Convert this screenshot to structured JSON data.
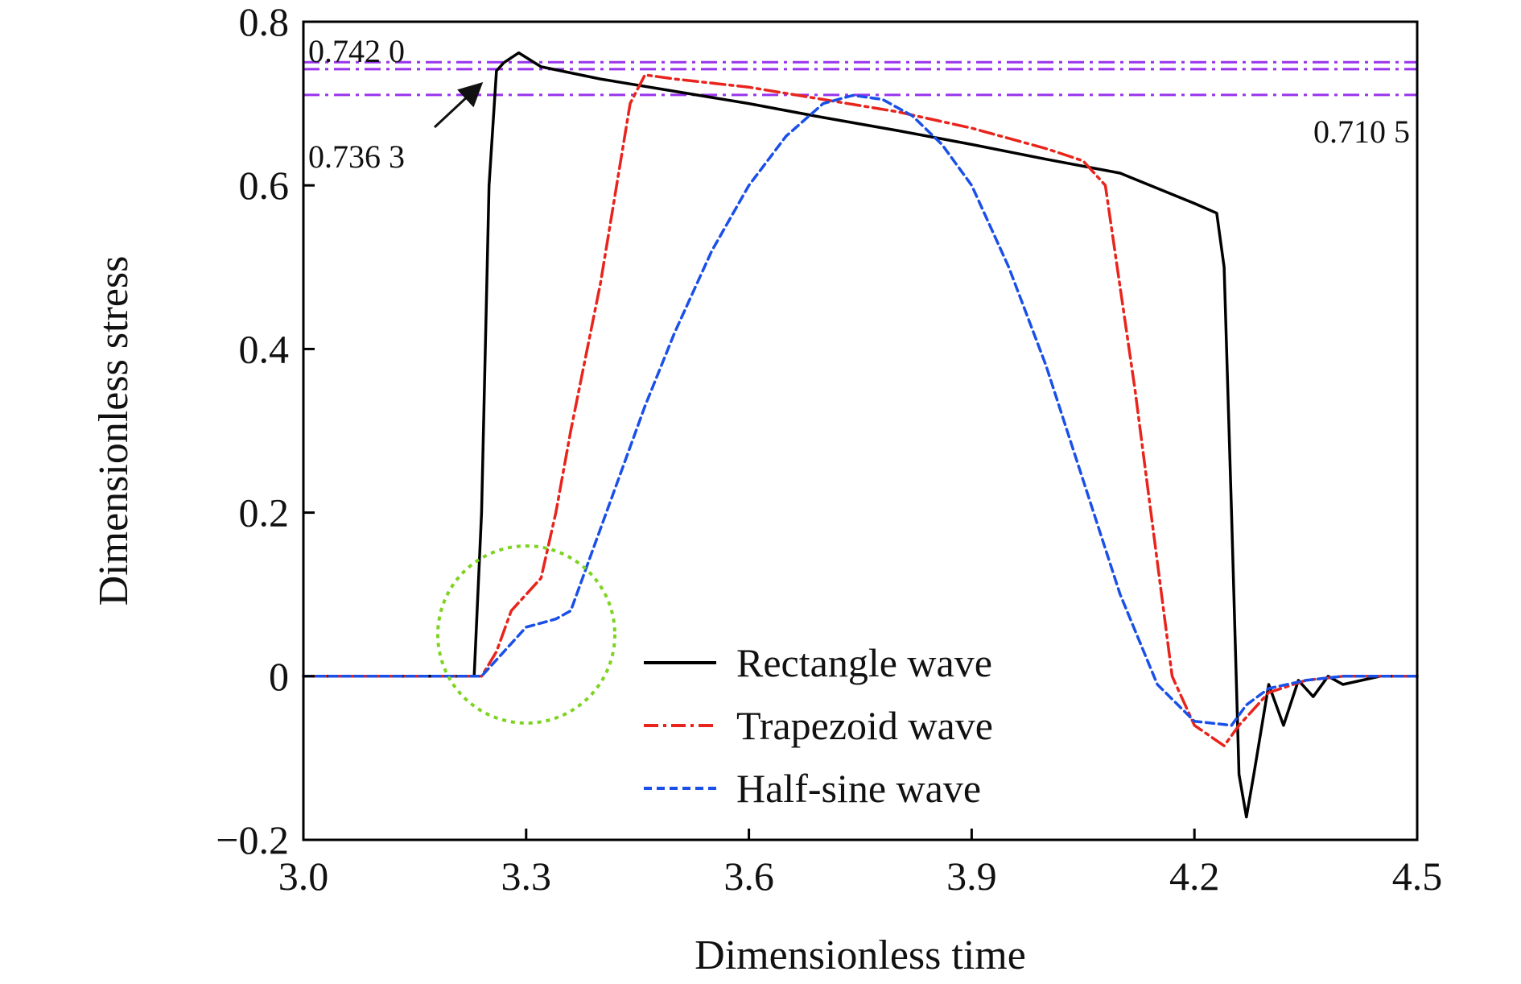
{
  "chart_data": {
    "type": "line",
    "xlabel": "Dimensionless time",
    "ylabel": "Dimensionless stress",
    "xlim": [
      3.0,
      4.5
    ],
    "ylim": [
      -0.2,
      0.8
    ],
    "xticks": [
      3.0,
      3.3,
      3.6,
      3.9,
      4.2,
      4.5
    ],
    "xtick_labels": [
      "3.0",
      "3.3",
      "3.6",
      "3.9",
      "4.2",
      "4.5"
    ],
    "yticks": [
      -0.2,
      0,
      0.2,
      0.4,
      0.6,
      0.8
    ],
    "ytick_labels": [
      "−0.2",
      "0",
      "0.2",
      "0.4",
      "0.6",
      "0.8"
    ],
    "grid": false,
    "legend_position": "bottom-right",
    "series": [
      {
        "name": "Rectangle wave",
        "color": "#000000",
        "dash": "solid",
        "x": [
          3.0,
          3.23,
          3.24,
          3.25,
          3.26,
          3.27,
          3.29,
          3.32,
          3.4,
          3.5,
          3.6,
          3.7,
          3.8,
          3.9,
          4.0,
          4.1,
          4.2,
          4.23,
          4.24,
          4.25,
          4.26,
          4.27,
          4.28,
          4.3,
          4.32,
          4.34,
          4.36,
          4.38,
          4.4,
          4.45,
          4.5
        ],
        "y": [
          0.0,
          0.0,
          0.2,
          0.6,
          0.74,
          0.75,
          0.762,
          0.745,
          0.73,
          0.715,
          0.7,
          0.683,
          0.667,
          0.65,
          0.632,
          0.615,
          0.578,
          0.566,
          0.5,
          0.2,
          -0.12,
          -0.172,
          -0.12,
          -0.01,
          -0.06,
          -0.005,
          -0.025,
          0.0,
          -0.01,
          0.0,
          0.0
        ]
      },
      {
        "name": "Trapezoid wave",
        "color": "#e8241c",
        "dash": "dashdot",
        "x": [
          3.0,
          3.24,
          3.26,
          3.28,
          3.3,
          3.32,
          3.34,
          3.36,
          3.4,
          3.44,
          3.46,
          3.5,
          3.6,
          3.7,
          3.8,
          3.9,
          4.0,
          4.05,
          4.08,
          4.12,
          4.17,
          4.2,
          4.24,
          4.26,
          4.3,
          4.35,
          4.4,
          4.5
        ],
        "y": [
          0.0,
          0.0,
          0.03,
          0.08,
          0.1,
          0.12,
          0.2,
          0.3,
          0.48,
          0.7,
          0.735,
          0.73,
          0.72,
          0.705,
          0.69,
          0.67,
          0.645,
          0.63,
          0.6,
          0.35,
          0.0,
          -0.06,
          -0.085,
          -0.06,
          -0.02,
          -0.005,
          0.0,
          0.0
        ]
      },
      {
        "name": "Half-sine wave",
        "color": "#1a50e8",
        "dash": "dashed",
        "x": [
          3.0,
          3.24,
          3.26,
          3.28,
          3.3,
          3.32,
          3.34,
          3.36,
          3.38,
          3.42,
          3.46,
          3.5,
          3.55,
          3.6,
          3.65,
          3.7,
          3.74,
          3.78,
          3.82,
          3.86,
          3.9,
          3.95,
          4.0,
          4.05,
          4.1,
          4.15,
          4.2,
          4.25,
          4.27,
          4.3,
          4.35,
          4.4,
          4.5
        ],
        "y": [
          0.0,
          0.0,
          0.02,
          0.04,
          0.06,
          0.065,
          0.07,
          0.08,
          0.13,
          0.23,
          0.33,
          0.42,
          0.52,
          0.6,
          0.66,
          0.7,
          0.71,
          0.705,
          0.685,
          0.65,
          0.6,
          0.5,
          0.38,
          0.24,
          0.1,
          -0.01,
          -0.055,
          -0.06,
          -0.035,
          -0.015,
          -0.005,
          0.0,
          0.0
        ]
      }
    ],
    "reference_lines": [
      {
        "y": 0.7505,
        "color": "#9933ee"
      },
      {
        "y": 0.742,
        "color": "#9933ee"
      },
      {
        "y": 0.7105,
        "color": "#9933ee"
      }
    ],
    "annotations": [
      {
        "text": "0.742 0"
      },
      {
        "text": "0.736 3"
      },
      {
        "text": "0.710 5"
      }
    ]
  }
}
